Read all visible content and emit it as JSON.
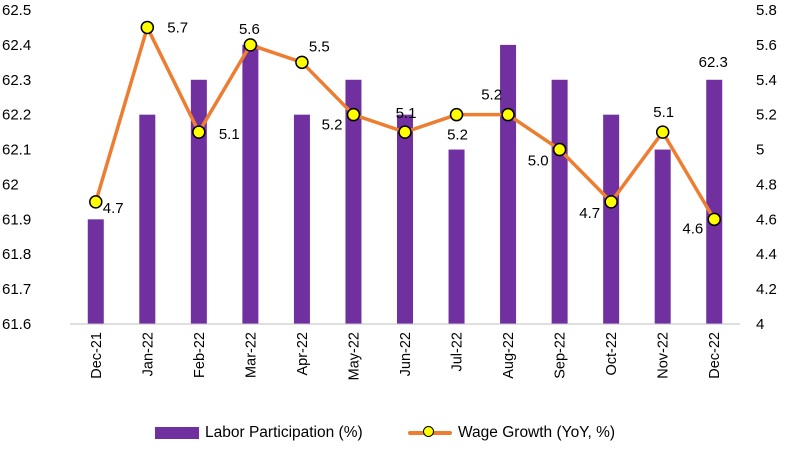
{
  "chart_data": {
    "type": "bar",
    "categories": [
      "Dec-21",
      "Jan-22",
      "Feb-22",
      "Mar-22",
      "Apr-22",
      "May-22",
      "Jun-22",
      "Jul-22",
      "Aug-22",
      "Sep-22",
      "Oct-22",
      "Nov-22",
      "Dec-22"
    ],
    "series": [
      {
        "name": "Labor Participation (%)",
        "type": "bar",
        "axis": "left",
        "color": "#7030A0",
        "values": [
          61.9,
          62.2,
          62.3,
          62.4,
          62.2,
          62.3,
          62.2,
          62.1,
          62.4,
          62.3,
          62.2,
          62.1,
          62.3
        ],
        "data_labels": [
          null,
          null,
          null,
          null,
          null,
          null,
          null,
          null,
          null,
          null,
          null,
          null,
          "62.3"
        ]
      },
      {
        "name": "Wage Growth (YoY, %)",
        "type": "line",
        "axis": "right",
        "color": "#ED7D31",
        "marker_fill": "#FFFF00",
        "values": [
          4.7,
          5.7,
          5.1,
          5.6,
          5.5,
          5.2,
          5.1,
          5.2,
          5.2,
          5.0,
          4.7,
          5.1,
          4.6
        ],
        "data_labels": [
          "4.7",
          "5.7",
          "5.1",
          "5.6",
          "5.5",
          "5.2",
          "5.1",
          "5.2",
          "5.2",
          "5.0",
          "4.7",
          "5.1",
          "4.6"
        ]
      }
    ],
    "y_left": {
      "ylim": [
        61.6,
        62.5
      ],
      "ticks": [
        "61.6",
        "61.7",
        "61.8",
        "61.9",
        "62",
        "62.1",
        "62.2",
        "62.3",
        "62.4",
        "62.5"
      ]
    },
    "y_right": {
      "ylim": [
        4.0,
        5.8
      ],
      "ticks": [
        "4",
        "4.2",
        "4.4",
        "4.6",
        "4.8",
        "5",
        "5.2",
        "5.4",
        "5.6",
        "5.8"
      ]
    },
    "grid": false,
    "legend": "bottom"
  }
}
